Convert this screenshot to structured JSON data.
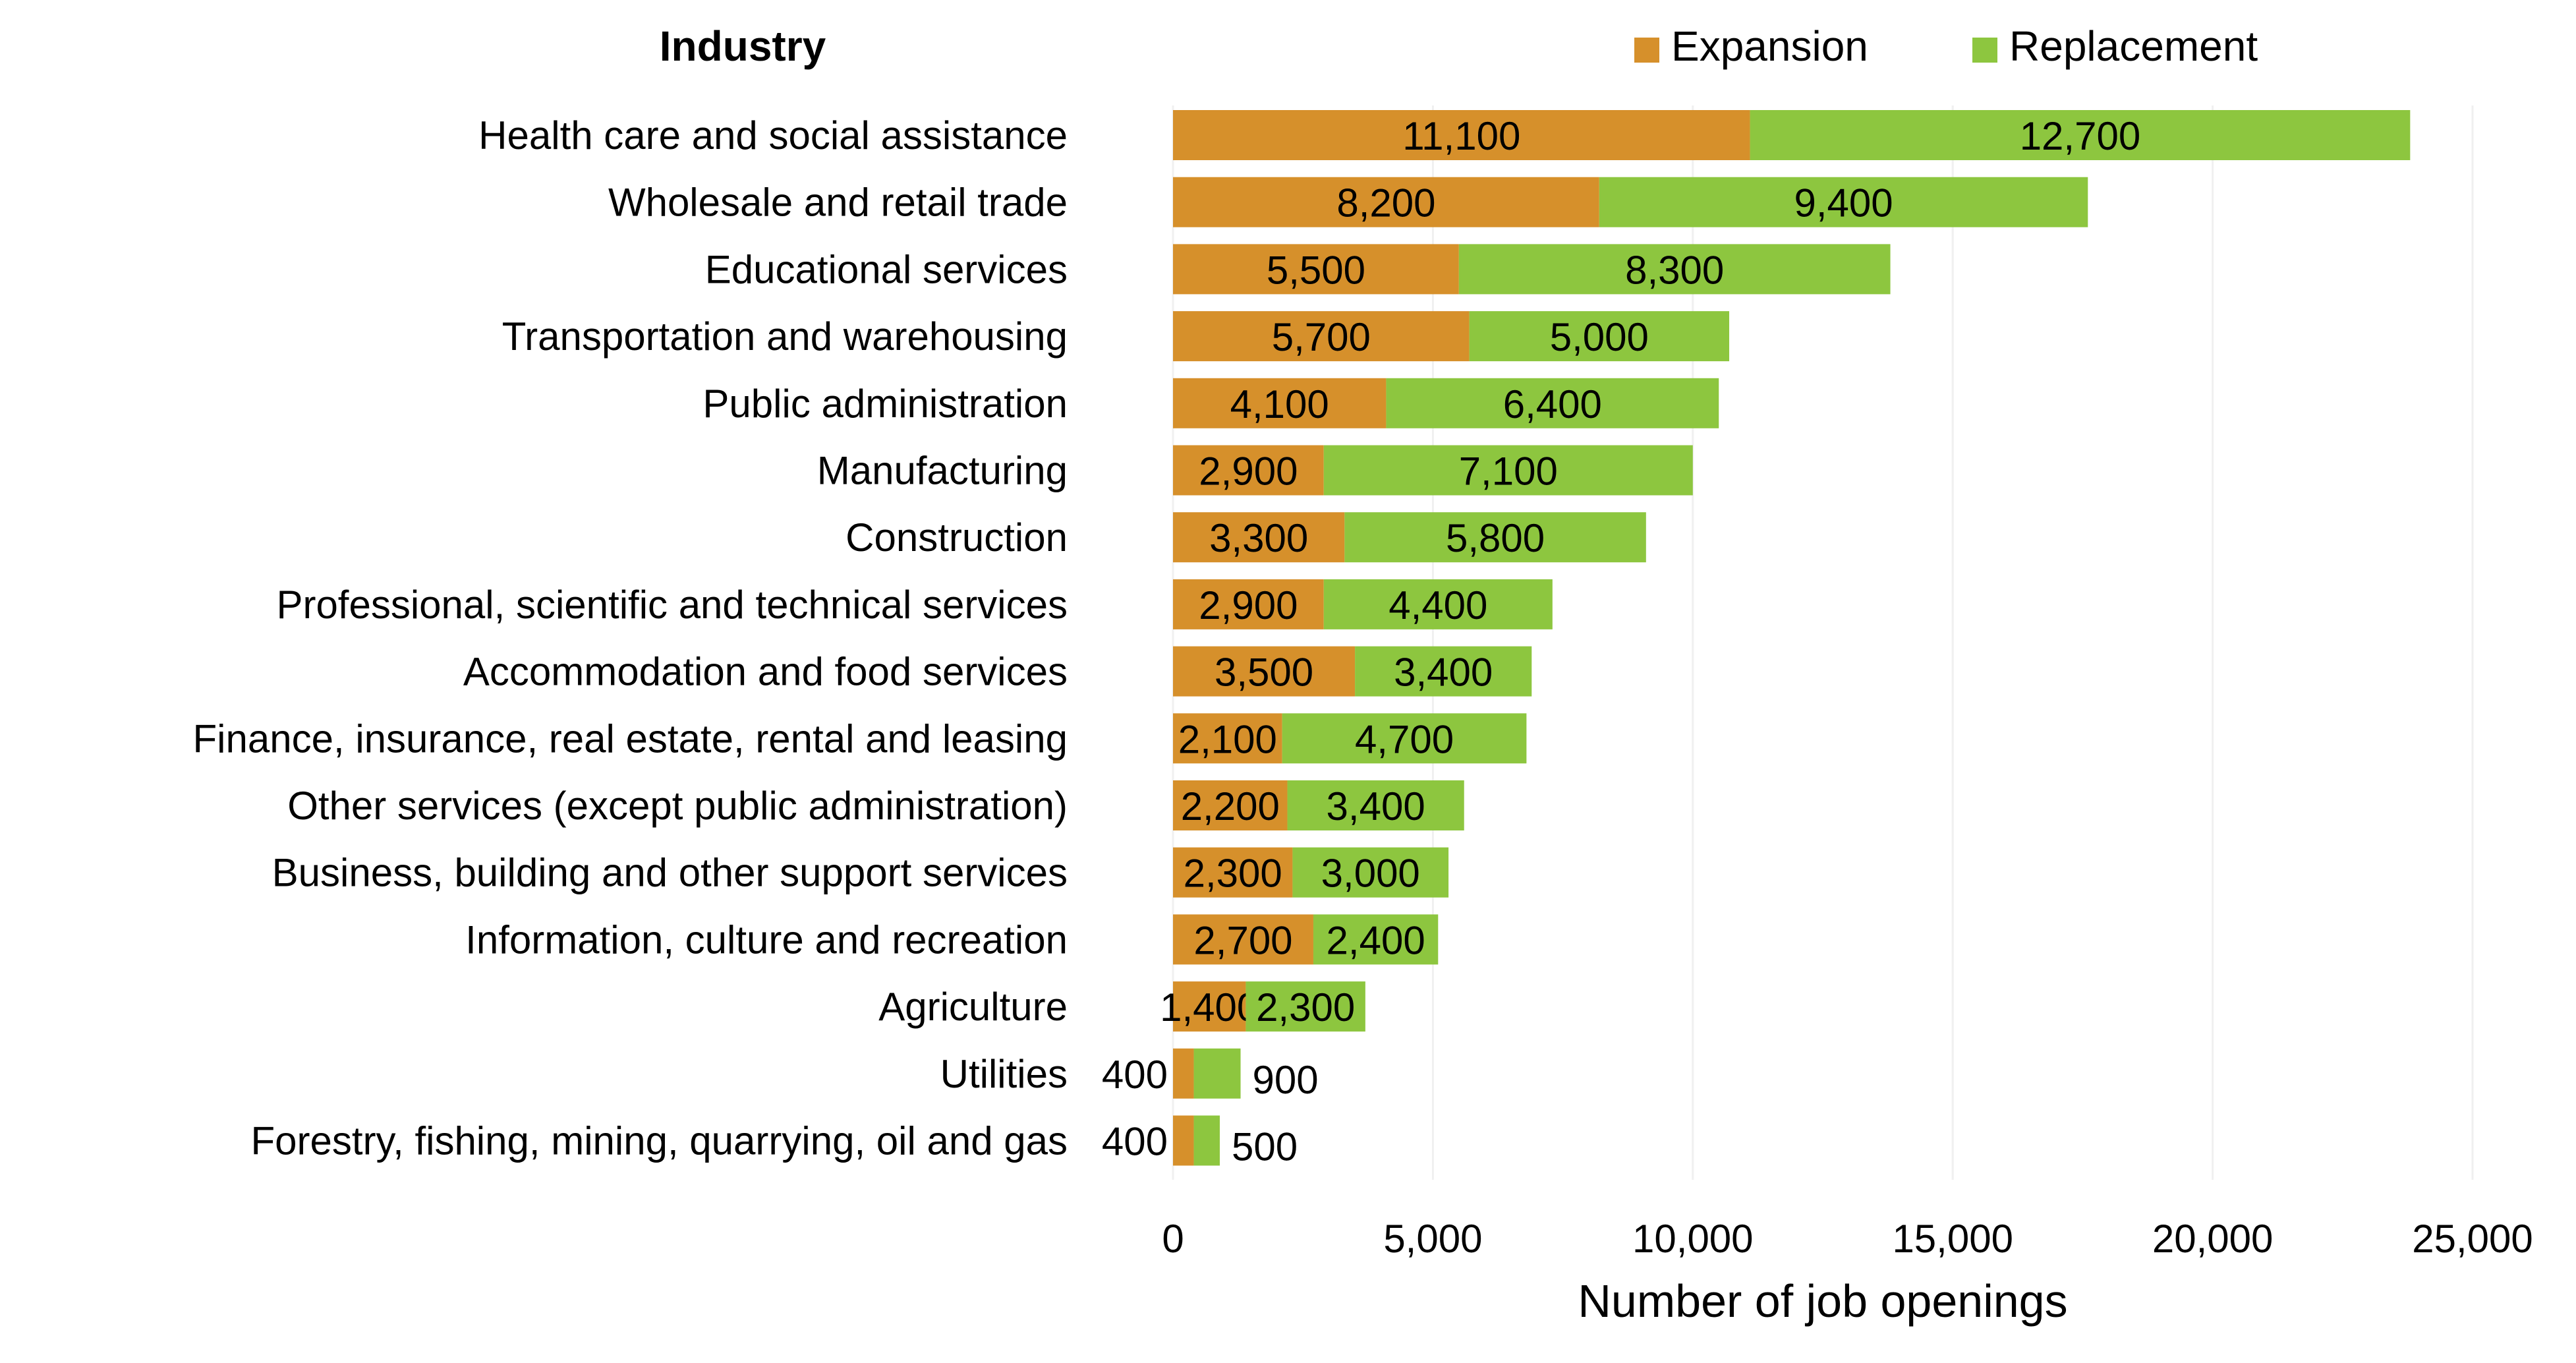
{
  "chart_data": {
    "type": "bar",
    "orientation": "horizontal",
    "stacked": true,
    "category_header": "Industry",
    "categories": [
      "Health care and social assistance",
      "Wholesale and retail trade",
      "Educational services",
      "Transportation and warehousing",
      "Public administration",
      "Manufacturing",
      "Construction",
      "Professional, scientific and technical services",
      "Accommodation and food services",
      "Finance, insurance, real estate, rental and leasing",
      "Other services (except public administration)",
      "Business, building and other support services",
      "Information, culture and recreation",
      "Agriculture",
      "Utilities",
      "Forestry, fishing, mining, quarrying, oil and gas"
    ],
    "series": [
      {
        "name": "Expansion",
        "color": "#D6902B",
        "values": [
          11100,
          8200,
          5500,
          5700,
          4100,
          2900,
          3300,
          2900,
          3500,
          2100,
          2200,
          2300,
          2700,
          1400,
          400,
          400
        ]
      },
      {
        "name": "Replacement",
        "color": "#8DC63F",
        "values": [
          12700,
          9400,
          8300,
          5000,
          6400,
          7100,
          5800,
          4400,
          3400,
          4700,
          3400,
          3000,
          2400,
          2300,
          900,
          500
        ]
      }
    ],
    "xlabel": "Number of job openings",
    "xlim": [
      0,
      25000
    ],
    "xticks": [
      "0",
      "5,000",
      "10,000",
      "15,000",
      "20,000",
      "25,000"
    ],
    "grid": "vertical, faint",
    "legend": "top-right",
    "data_labels": true
  }
}
